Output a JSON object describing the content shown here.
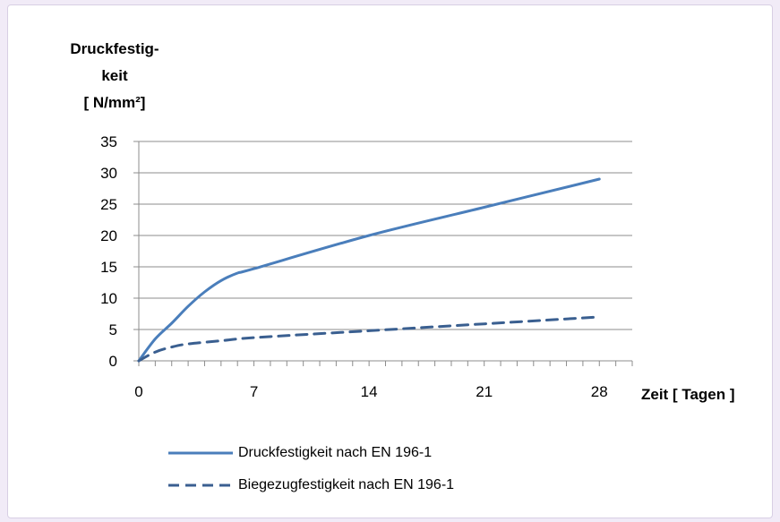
{
  "chart_data": {
    "type": "line",
    "title": "",
    "ylabel_lines": [
      "Druckfestig-",
      "keit",
      "[ N/mm²]"
    ],
    "xlabel": "Zeit [ Tagen ]",
    "x": [
      0,
      1,
      2,
      3,
      4,
      5,
      6,
      7,
      14,
      21,
      28
    ],
    "xticks": [
      0,
      7,
      14,
      21,
      28
    ],
    "yticks": [
      0,
      5,
      10,
      15,
      20,
      25,
      30,
      35
    ],
    "xlim": [
      0,
      30
    ],
    "ylim": [
      0,
      35
    ],
    "grid": "horizontal",
    "legend_position": "bottom",
    "series": [
      {
        "name": "Druckfestigkeit nach EN 196-1",
        "style": "solid",
        "color": "#4a7ebb",
        "x": [
          0,
          1,
          2,
          3,
          4,
          5,
          6,
          7,
          14,
          21,
          28
        ],
        "values": [
          0,
          3.5,
          6,
          8.7,
          11,
          12.8,
          14,
          14.7,
          20,
          24.5,
          29
        ]
      },
      {
        "name": "Biegezugfestigkeit nach EN 196-1",
        "style": "dashed",
        "color": "#3a5f90",
        "x": [
          0,
          1,
          2,
          3,
          5,
          7,
          14,
          21,
          28
        ],
        "values": [
          0,
          1.4,
          2.2,
          2.7,
          3.2,
          3.7,
          4.8,
          5.9,
          7
        ]
      }
    ]
  }
}
